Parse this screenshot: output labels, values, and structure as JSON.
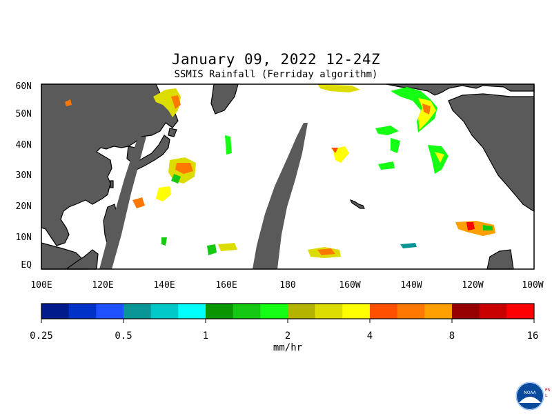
{
  "title": "January 09, 2022 12-24Z",
  "subtitle": "SSMIS Rainfall (Ferriday algorithm)",
  "map": {
    "lat_labels": [
      "60N",
      "50N",
      "40N",
      "30N",
      "20N",
      "10N",
      "EQ"
    ],
    "lon_labels": [
      "100E",
      "120E",
      "140E",
      "160E",
      "180",
      "160W",
      "140W",
      "120W",
      "100W"
    ],
    "colors": {
      "land": "#5a5a5a",
      "ocean": "#ffffff",
      "border": "#000000"
    }
  },
  "colorbar": {
    "colors": [
      "#001b8c",
      "#0032c8",
      "#1e50ff",
      "#0a9696",
      "#00c8c8",
      "#00ffff",
      "#0a9600",
      "#14c814",
      "#14ff14",
      "#b4b400",
      "#dcdc00",
      "#ffff00",
      "#ff5000",
      "#ff7800",
      "#ffa000",
      "#960000",
      "#c80000",
      "#ff0000"
    ],
    "tick_labels": [
      "0.25",
      "0.5",
      "1",
      "2",
      "4",
      "8",
      "16"
    ],
    "units": "mm/hr"
  },
  "logo": {
    "text": "NOAA",
    "side_text": "PSL"
  }
}
